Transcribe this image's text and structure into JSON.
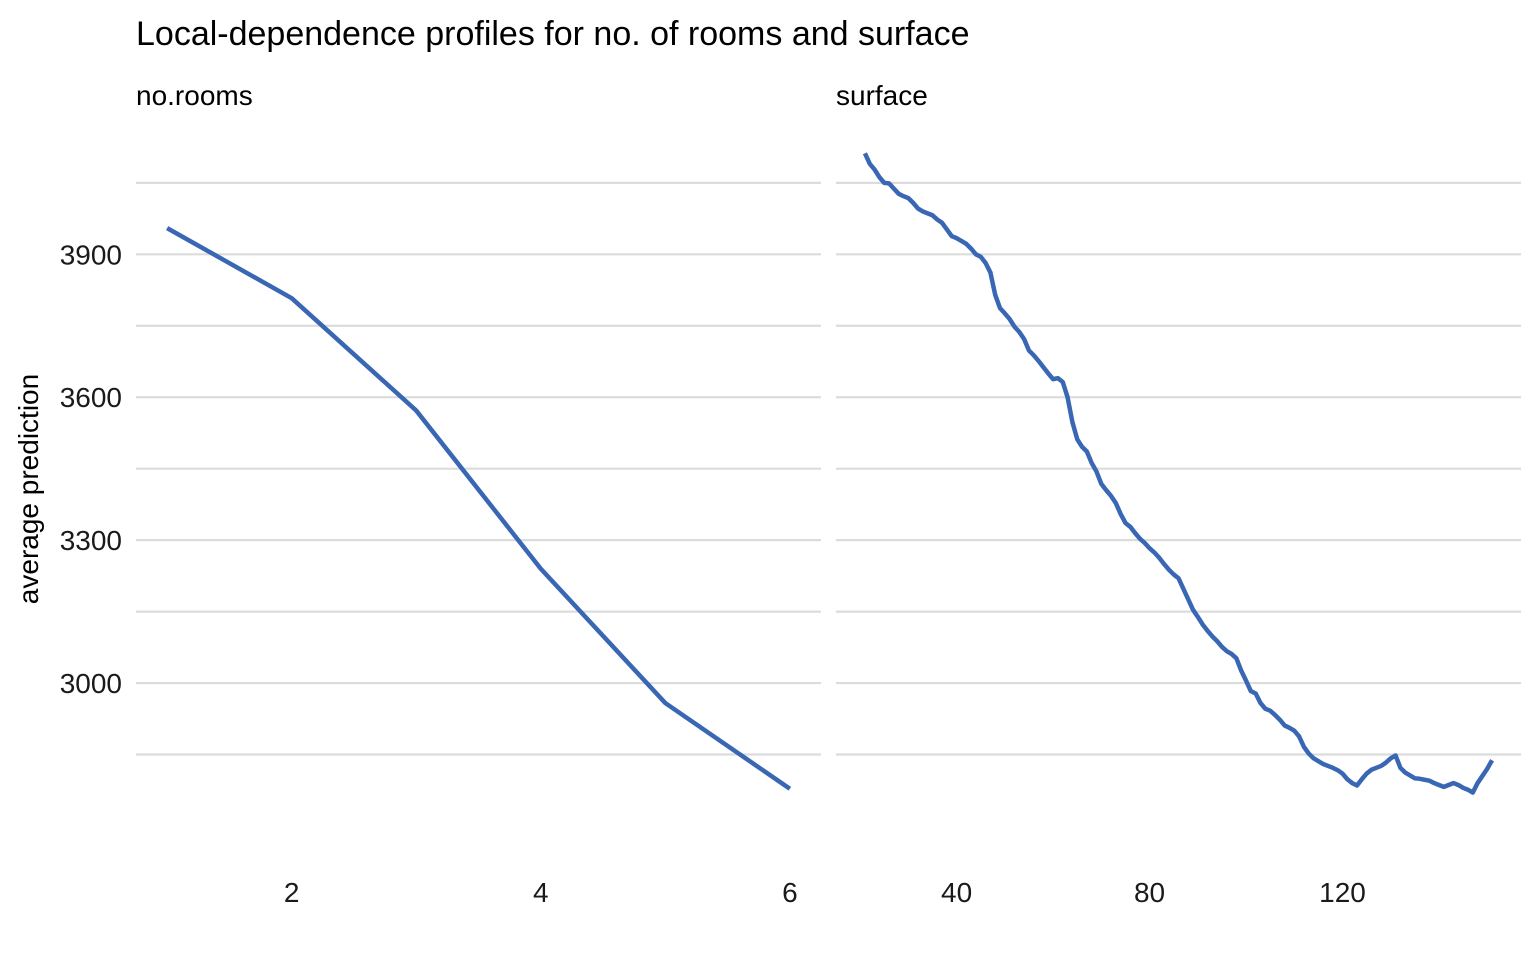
{
  "chart_data": {
    "type": "line",
    "title": "Local-dependence profiles for no. of rooms and surface",
    "ylabel": "average prediction",
    "ylim": [
      2660,
      4140
    ],
    "yticks": [
      3000,
      3300,
      3600,
      3900
    ],
    "yticks_labels": [
      "3000",
      "3300",
      "3600",
      "3900"
    ],
    "grid": true,
    "series_color": "#3a67b4",
    "panels": [
      {
        "name": "no.rooms",
        "xlabel": "",
        "xlim": [
          0.75,
          6.25
        ],
        "xticks": [
          2,
          4,
          6
        ],
        "xticks_labels": [
          "2",
          "4",
          "6"
        ],
        "x": [
          1,
          2,
          3,
          4,
          5,
          6
        ],
        "y": [
          3955,
          3808,
          3572,
          3240,
          2958,
          2778
        ]
      },
      {
        "name": "surface",
        "xlabel": "",
        "xlim": [
          15,
          157
        ],
        "xticks": [
          40,
          80,
          120
        ],
        "xticks_labels": [
          "40",
          "80",
          "120"
        ],
        "x": [
          21,
          22,
          23,
          24,
          25,
          26,
          27,
          28,
          29,
          30,
          31,
          32,
          33,
          34,
          35,
          36,
          37,
          38,
          39,
          40,
          41,
          42,
          43,
          44,
          45,
          46,
          47,
          48,
          49,
          50,
          51,
          52,
          53,
          54,
          55,
          56,
          57,
          58,
          59,
          60,
          61,
          62,
          63,
          64,
          65,
          66,
          67,
          68,
          69,
          70,
          71,
          72,
          73,
          74,
          75,
          76,
          77,
          78,
          79,
          80,
          81,
          82,
          83,
          84,
          85,
          86,
          87,
          88,
          89,
          90,
          91,
          92,
          93,
          94,
          95,
          96,
          97,
          98,
          99,
          100,
          101,
          102,
          103,
          104,
          105,
          106,
          107,
          108,
          109,
          110,
          111,
          112,
          113,
          114,
          115,
          116,
          117,
          118,
          119,
          120,
          121,
          122,
          123,
          124,
          125,
          126,
          127,
          128,
          129,
          130,
          131,
          132,
          133,
          134,
          135,
          136,
          137,
          138,
          139,
          140,
          141,
          142,
          143,
          144,
          145,
          146,
          147,
          148,
          149,
          150,
          151
        ],
        "y": [
          4112,
          4090,
          4078,
          4062,
          4050,
          4049,
          4038,
          4027,
          4022,
          4018,
          4008,
          3996,
          3990,
          3986,
          3982,
          3973,
          3966,
          3952,
          3938,
          3934,
          3928,
          3922,
          3912,
          3900,
          3895,
          3882,
          3862,
          3815,
          3787,
          3776,
          3764,
          3748,
          3737,
          3722,
          3698,
          3688,
          3676,
          3663,
          3650,
          3638,
          3640,
          3632,
          3600,
          3548,
          3512,
          3496,
          3486,
          3462,
          3444,
          3418,
          3405,
          3393,
          3378,
          3355,
          3336,
          3328,
          3315,
          3303,
          3294,
          3283,
          3274,
          3263,
          3250,
          3238,
          3228,
          3220,
          3198,
          3176,
          3154,
          3139,
          3123,
          3110,
          3098,
          3088,
          3076,
          3067,
          3061,
          3052,
          3026,
          3005,
          2983,
          2978,
          2958,
          2946,
          2942,
          2933,
          2923,
          2911,
          2906,
          2900,
          2888,
          2866,
          2852,
          2842,
          2836,
          2830,
          2826,
          2822,
          2817,
          2810,
          2798,
          2790,
          2785,
          2798,
          2810,
          2818,
          2822,
          2826,
          2833,
          2842,
          2848,
          2822,
          2812,
          2806,
          2800,
          2799,
          2797,
          2795,
          2790,
          2786,
          2782,
          2786,
          2790,
          2786,
          2780,
          2776,
          2770,
          2790,
          2805,
          2820,
          2838
        ]
      }
    ]
  }
}
